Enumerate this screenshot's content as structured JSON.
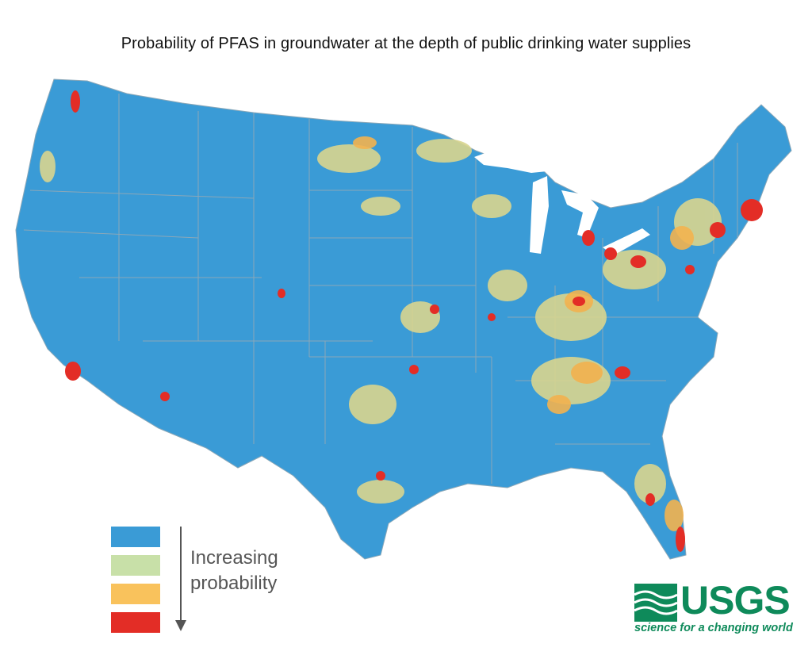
{
  "title": "Probability of PFAS in groundwater at the depth of public drinking water supplies",
  "legend": {
    "label_line1": "Increasing",
    "label_line2": "probability",
    "classes": [
      {
        "color": "#3a9bd6"
      },
      {
        "color": "#c8e0a8"
      },
      {
        "color": "#f9c25c"
      },
      {
        "color": "#e8312a"
      }
    ]
  },
  "colors": {
    "base": "#3a9bd6",
    "state_lines": "#8aa7b8",
    "medium": "#d9d58f",
    "high": "#f3b24f",
    "highest": "#e32d26"
  },
  "logo": {
    "wordmark": "USGS",
    "tagline": "science for a changing world",
    "color": "#0e8a5a"
  }
}
